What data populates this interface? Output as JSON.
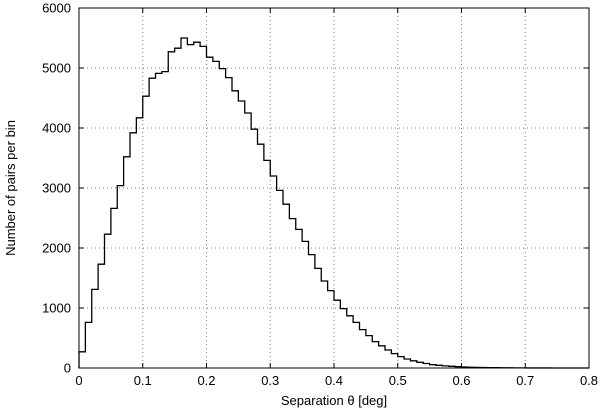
{
  "chart_data": {
    "type": "histogram",
    "title": "",
    "xlabel": "Separation θ [deg]",
    "ylabel": "Number of pairs per bin",
    "xlim": [
      0,
      0.8
    ],
    "ylim": [
      0,
      6000
    ],
    "grid": true,
    "grid_style": "dotted",
    "xticks": [
      0,
      0.1,
      0.2,
      0.3,
      0.4,
      0.5,
      0.6,
      0.7,
      0.8
    ],
    "xtick_labels": [
      "0",
      "0.1",
      "0.2",
      "0.3",
      "0.4",
      "0.5",
      "0.6",
      "0.7",
      "0.8"
    ],
    "yticks": [
      0,
      1000,
      2000,
      3000,
      4000,
      5000,
      6000
    ],
    "ytick_labels": [
      "0",
      "1000",
      "2000",
      "3000",
      "4000",
      "5000",
      "6000"
    ],
    "bin_width": 0.01,
    "bin_start": 0,
    "values": [
      270,
      760,
      1310,
      1730,
      2230,
      2660,
      3040,
      3520,
      3920,
      4170,
      4530,
      4830,
      4910,
      4940,
      5270,
      5330,
      5500,
      5390,
      5430,
      5360,
      5180,
      5110,
      4990,
      4840,
      4620,
      4450,
      4250,
      3980,
      3730,
      3460,
      3200,
      2960,
      2730,
      2490,
      2310,
      2110,
      1890,
      1660,
      1450,
      1290,
      1130,
      990,
      870,
      760,
      640,
      540,
      440,
      370,
      300,
      240,
      190,
      150,
      120,
      95,
      75,
      55,
      45,
      35,
      28,
      22,
      17,
      13,
      10,
      8,
      6,
      5,
      4,
      3,
      2,
      2,
      1,
      1,
      1,
      1,
      0,
      0,
      0,
      0,
      0,
      0
    ],
    "line_color": "#000000",
    "grid_color": "#808080"
  }
}
